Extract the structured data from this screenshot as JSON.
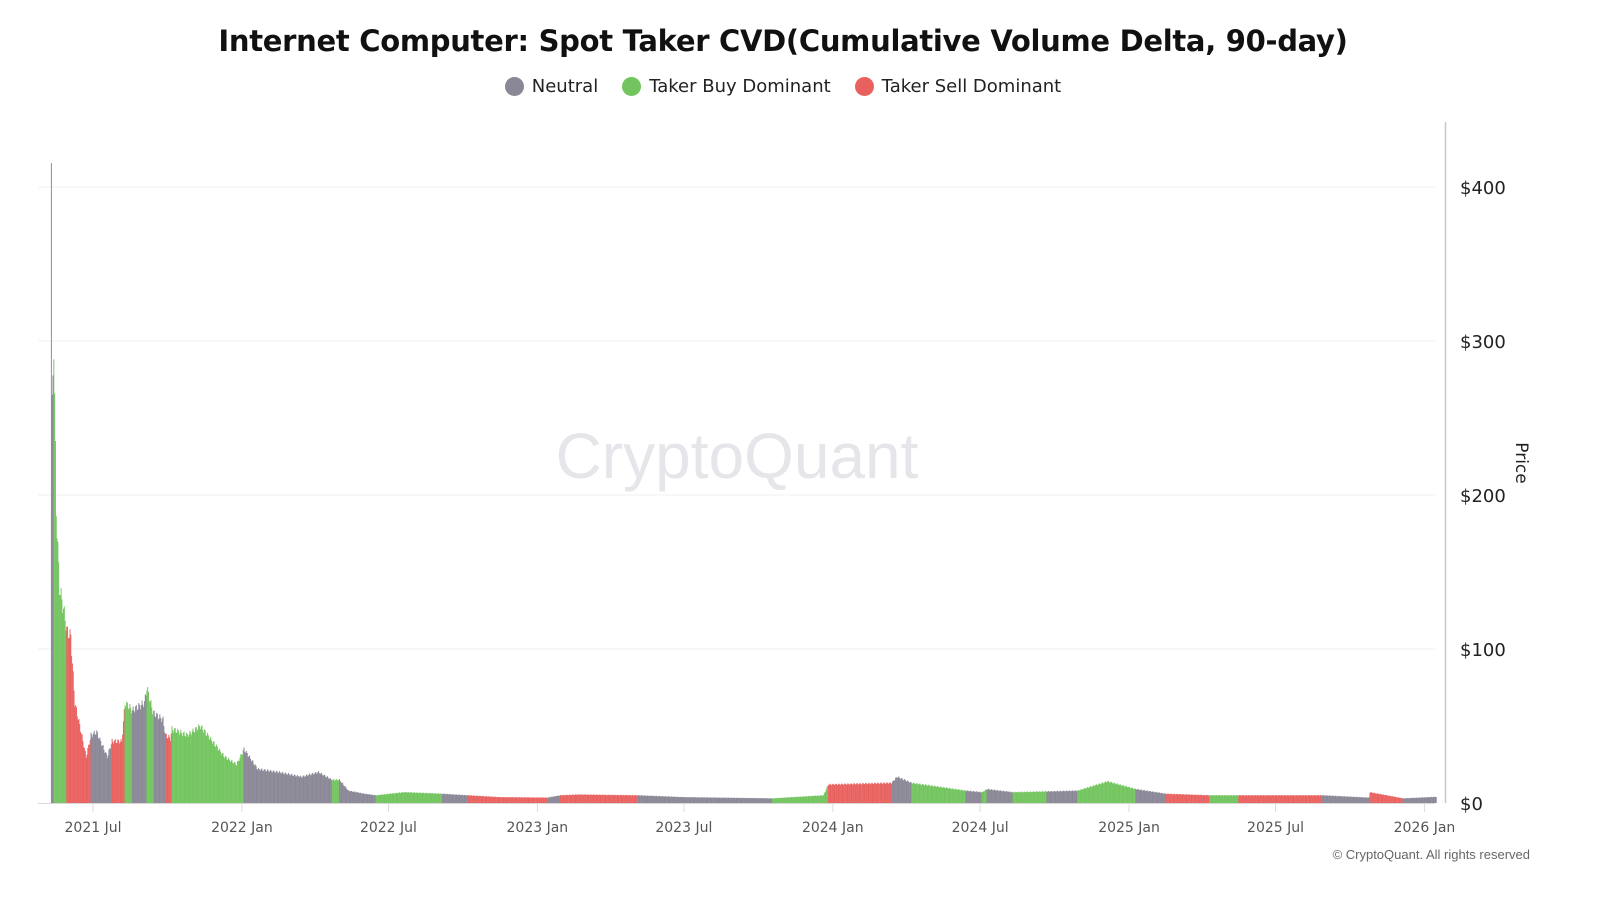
{
  "chart_data": {
    "type": "bar",
    "title": "Internet Computer: Spot Taker CVD(Cumulative Volume Delta, 90-day)",
    "ylabel": "Price",
    "xlabel": "",
    "ylim": [
      0,
      420
    ],
    "xlim": [
      "2021-05-10",
      "2026-01-15"
    ],
    "grid": true,
    "legend_placement": "top-center",
    "watermark": "CryptoQuant",
    "copyright": "© CryptoQuant. All rights reserved",
    "legend": [
      {
        "key": "N",
        "label": "Neutral",
        "color": "#8a8796"
      },
      {
        "key": "G",
        "label": "Taker Buy Dominant",
        "color": "#72c45e"
      },
      {
        "key": "R",
        "label": "Taker Sell Dominant",
        "color": "#e8615f"
      }
    ],
    "y_ticks": [
      {
        "value": 0,
        "label": "$0"
      },
      {
        "value": 100,
        "label": "$100"
      },
      {
        "value": 200,
        "label": "$200"
      },
      {
        "value": 300,
        "label": "$300"
      },
      {
        "value": 400,
        "label": "$400"
      }
    ],
    "x_ticks": [
      {
        "date": "2021-07-01",
        "label": "2021 Jul"
      },
      {
        "date": "2022-01-01",
        "label": "2022 Jan"
      },
      {
        "date": "2022-07-01",
        "label": "2022 Jul"
      },
      {
        "date": "2023-01-01",
        "label": "2023 Jan"
      },
      {
        "date": "2023-07-01",
        "label": "2023 Jul"
      },
      {
        "date": "2024-01-01",
        "label": "2024 Jan"
      },
      {
        "date": "2024-07-01",
        "label": "2024 Jul"
      },
      {
        "date": "2025-01-01",
        "label": "2025 Jan"
      },
      {
        "date": "2025-07-01",
        "label": "2025 Jul"
      },
      {
        "date": "2026-01-01",
        "label": "2026 Jan"
      }
    ],
    "points_format": [
      "date",
      "price_usd",
      "regime_from_this_date"
    ],
    "points": [
      [
        "2021-05-10",
        420,
        "N"
      ],
      [
        "2021-05-11",
        255,
        "N"
      ],
      [
        "2021-05-13",
        300,
        "G"
      ],
      [
        "2021-05-16",
        190,
        "G"
      ],
      [
        "2021-05-20",
        140,
        "G"
      ],
      [
        "2021-05-27",
        120,
        "G"
      ],
      [
        "2021-05-29",
        112,
        "R"
      ],
      [
        "2021-06-03",
        108,
        "R"
      ],
      [
        "2021-06-08",
        65,
        "R"
      ],
      [
        "2021-06-15",
        48,
        "R"
      ],
      [
        "2021-06-22",
        30,
        "R"
      ],
      [
        "2021-06-28",
        44,
        "N"
      ],
      [
        "2021-07-05",
        46,
        "N"
      ],
      [
        "2021-07-18",
        30,
        "N"
      ],
      [
        "2021-07-24",
        40,
        "R"
      ],
      [
        "2021-08-05",
        40,
        "R"
      ],
      [
        "2021-08-09",
        65,
        "G"
      ],
      [
        "2021-08-15",
        62,
        "G"
      ],
      [
        "2021-08-18",
        60,
        "N"
      ],
      [
        "2021-09-02",
        65,
        "N"
      ],
      [
        "2021-09-05",
        75,
        "G"
      ],
      [
        "2021-09-12",
        60,
        "G"
      ],
      [
        "2021-09-14",
        58,
        "N"
      ],
      [
        "2021-09-25",
        54,
        "N"
      ],
      [
        "2021-09-28",
        44,
        "R"
      ],
      [
        "2021-10-04",
        42,
        "R"
      ],
      [
        "2021-10-06",
        48,
        "G"
      ],
      [
        "2021-10-25",
        44,
        "G"
      ],
      [
        "2021-11-10",
        50,
        "G"
      ],
      [
        "2021-11-25",
        40,
        "G"
      ],
      [
        "2021-12-10",
        30,
        "G"
      ],
      [
        "2021-12-25",
        25,
        "G"
      ],
      [
        "2022-01-03",
        35,
        "N"
      ],
      [
        "2022-01-20",
        22,
        "N"
      ],
      [
        "2022-02-15",
        20,
        "N"
      ],
      [
        "2022-03-15",
        17,
        "N"
      ],
      [
        "2022-04-05",
        20,
        "N"
      ],
      [
        "2022-04-22",
        15,
        "G"
      ],
      [
        "2022-05-01",
        15,
        "N"
      ],
      [
        "2022-05-12",
        8,
        "N"
      ],
      [
        "2022-06-01",
        6,
        "N"
      ],
      [
        "2022-06-15",
        5,
        "G"
      ],
      [
        "2022-07-20",
        7,
        "G"
      ],
      [
        "2022-09-05",
        6,
        "N"
      ],
      [
        "2022-10-06",
        5,
        "R"
      ],
      [
        "2022-11-15",
        3.8,
        "R"
      ],
      [
        "2023-01-13",
        3.5,
        "N"
      ],
      [
        "2023-01-29",
        5,
        "R"
      ],
      [
        "2023-02-20",
        5.5,
        "R"
      ],
      [
        "2023-05-04",
        5,
        "N"
      ],
      [
        "2023-07-01",
        3.8,
        "N"
      ],
      [
        "2023-10-18",
        3,
        "G"
      ],
      [
        "2023-12-20",
        5,
        "G"
      ],
      [
        "2023-12-26",
        12,
        "R"
      ],
      [
        "2024-03-13",
        13,
        "N"
      ],
      [
        "2024-03-20",
        17,
        "N"
      ],
      [
        "2024-04-07",
        13,
        "G"
      ],
      [
        "2024-06-13",
        8,
        "N"
      ],
      [
        "2024-07-03",
        7,
        "G"
      ],
      [
        "2024-07-09",
        9,
        "N"
      ],
      [
        "2024-08-10",
        7,
        "G"
      ],
      [
        "2024-09-21",
        7.5,
        "N"
      ],
      [
        "2024-10-29",
        8,
        "G"
      ],
      [
        "2024-12-05",
        14,
        "G"
      ],
      [
        "2025-01-09",
        9,
        "N"
      ],
      [
        "2025-02-15",
        6,
        "R"
      ],
      [
        "2025-04-10",
        5,
        "G"
      ],
      [
        "2025-05-16",
        5,
        "R"
      ],
      [
        "2025-08-27",
        5,
        "N"
      ],
      [
        "2025-10-24",
        3.5,
        "N"
      ],
      [
        "2025-10-25",
        7,
        "R"
      ],
      [
        "2025-12-05",
        3,
        "N"
      ],
      [
        "2026-01-15",
        4,
        "N"
      ]
    ]
  }
}
